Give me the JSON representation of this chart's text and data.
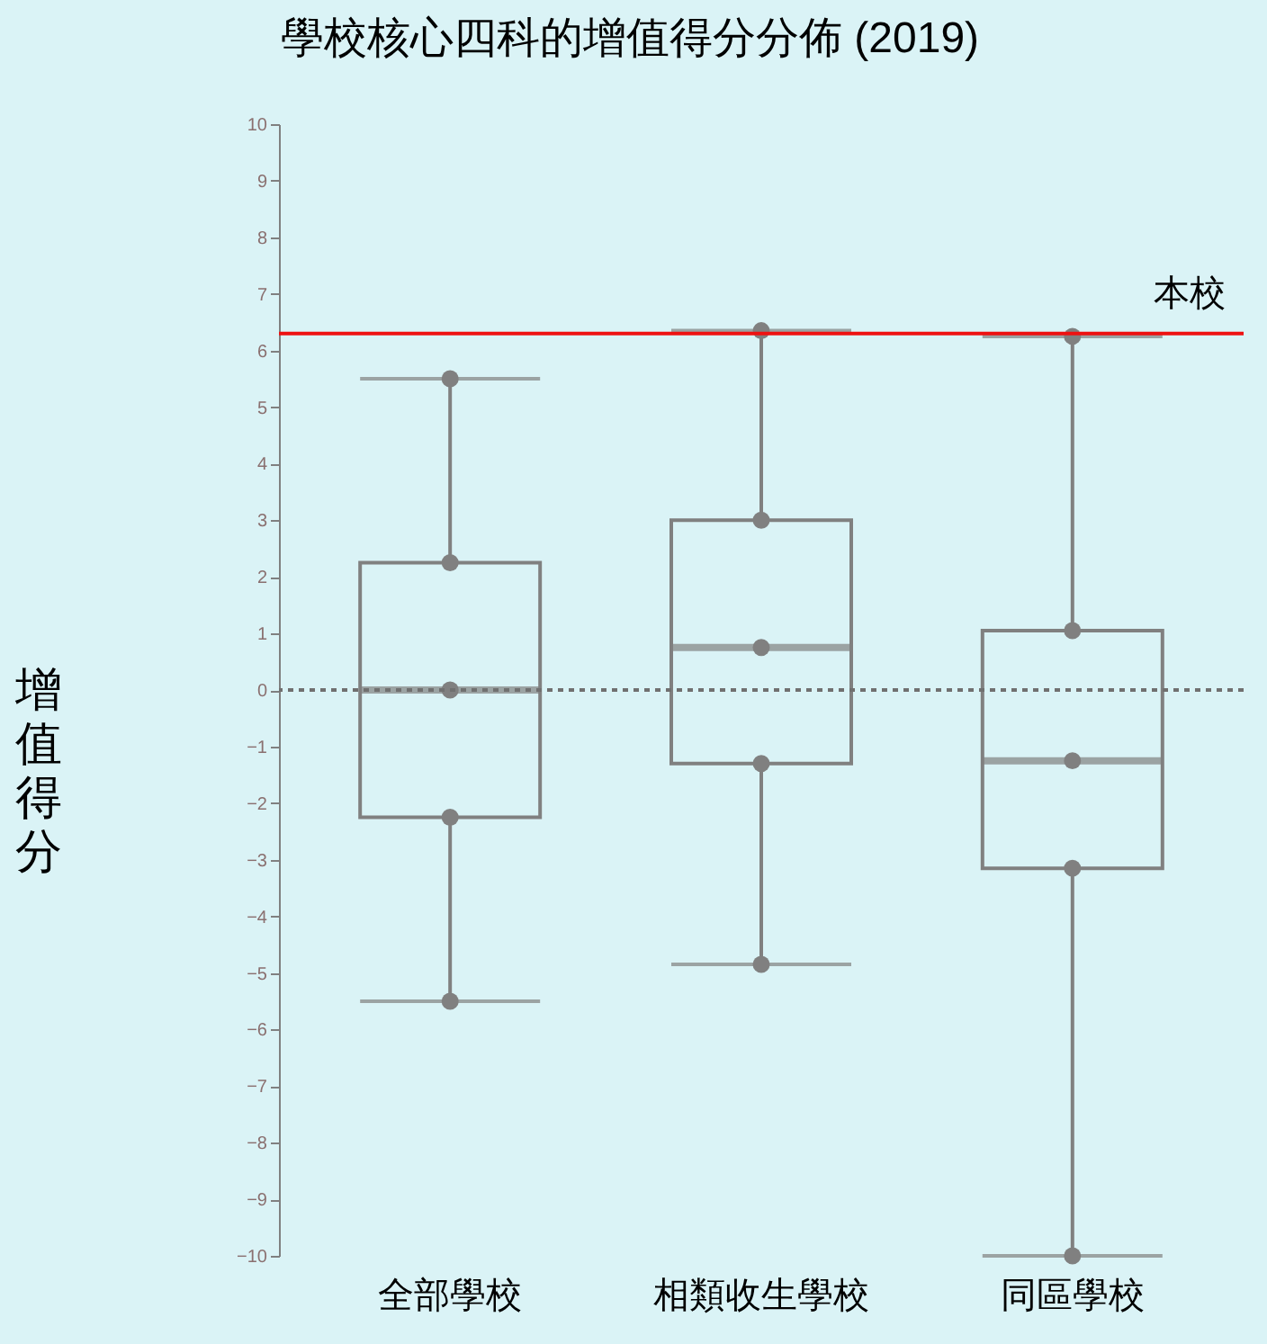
{
  "chart_data": {
    "type": "box",
    "title": "學校核心四科的增值得分分佈  (2019)",
    "ylabel": "增值得分",
    "categories": [
      "全部學校",
      "相類收生學校",
      "同區學校"
    ],
    "boxes": [
      {
        "low": -5.5,
        "q1": -2.25,
        "median": 0,
        "q3": 2.25,
        "high": 5.5
      },
      {
        "low": -4.85,
        "q1": -1.3,
        "median": 0.75,
        "q3": 3,
        "high": 6.35
      },
      {
        "low": -10,
        "q1": -3.15,
        "median": -1.25,
        "q3": 1.05,
        "high": 6.25
      }
    ],
    "color": "#808080",
    "series": [
      {
        "type": "scatter",
        "color": "#808080",
        "marker": "circle",
        "x": [
          "全部學校",
          "全部學校",
          "全部學校",
          "全部學校",
          "全部學校",
          "相類收生學校",
          "相類收生學校",
          "相類收生學校",
          "相類收生學校",
          "相類收生學校",
          "同區學校",
          "同區學校",
          "同區學校",
          "同區學校",
          "同區學校"
        ],
        "values": [
          -5.5,
          -2.25,
          0,
          2.25,
          5.5,
          -4.85,
          -1.3,
          0.75,
          3,
          6.35,
          -10,
          -3.15,
          -1.25,
          1.05,
          6.25
        ]
      }
    ],
    "ylim": [
      -10,
      10
    ],
    "yticks": [
      -10,
      -9,
      -8,
      -7,
      -6,
      -5,
      -4,
      -3,
      -2,
      -1,
      0,
      1,
      2,
      3,
      4,
      5,
      6,
      7,
      8,
      9,
      10
    ],
    "grid": false,
    "ref_lines": [
      {
        "axis": "y",
        "value": 6.3,
        "label": "本校",
        "color": "#ee1111",
        "line_style": "solid"
      },
      {
        "axis": "y",
        "value": 0,
        "label": null,
        "color": "#707070",
        "line_style": "dotted"
      }
    ]
  }
}
